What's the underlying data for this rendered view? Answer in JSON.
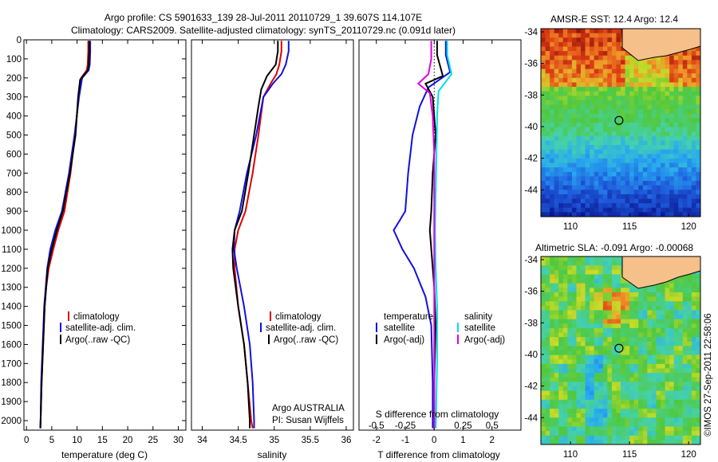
{
  "title": {
    "line1": "Argo profile: CS 5901633_139 28-Jul-2011 20110729_1 39.607S 114.107E",
    "line2": "Climatology: CARS2009. Satellite-adjusted climatology: synTS_20110729.nc (0.091d later)"
  },
  "colors": {
    "climatology": "#e00000",
    "satellite": "#1010e0",
    "argo": "#000000",
    "sal_satellite": "#00e0e0",
    "sal_argo": "#e000e0",
    "land": "#f5c08a"
  },
  "chart_data": [
    {
      "type": "line",
      "xlabel": "temperature (deg C)",
      "ylabel": "",
      "xlim": [
        -0.5,
        31.5
      ],
      "ylim": [
        2050,
        0
      ],
      "xticks": [
        0,
        5,
        10,
        15,
        20,
        25,
        30
      ],
      "yticks": [
        0,
        100,
        200,
        300,
        400,
        500,
        600,
        700,
        800,
        900,
        1000,
        1100,
        1200,
        1300,
        1400,
        1500,
        1600,
        1700,
        1800,
        1900,
        2000
      ],
      "legend": {
        "placement": "lower-center",
        "entries": [
          "climatology",
          "satellite-adj. clim.",
          "Argo(..raw -QC)"
        ]
      },
      "series": [
        {
          "name": "climatology",
          "color": "#e00000",
          "points": [
            [
              12.2,
              5
            ],
            [
              12.2,
              60
            ],
            [
              12.1,
              130
            ],
            [
              11.9,
              160
            ],
            [
              10.8,
              200
            ],
            [
              10.3,
              300
            ],
            [
              9.6,
              500
            ],
            [
              8.7,
              700
            ],
            [
              7.5,
              900
            ],
            [
              6.3,
              1000
            ],
            [
              5.3,
              1100
            ],
            [
              4.4,
              1200
            ],
            [
              3.9,
              1300
            ],
            [
              3.6,
              1400
            ],
            [
              3.3,
              1600
            ],
            [
              3.0,
              1800
            ],
            [
              2.8,
              2000
            ],
            [
              2.75,
              2040
            ]
          ]
        },
        {
          "name": "satellite-adj. clim.",
          "color": "#1010e0",
          "points": [
            [
              12.6,
              5
            ],
            [
              12.6,
              60
            ],
            [
              12.5,
              130
            ],
            [
              12.3,
              160
            ],
            [
              11.0,
              200
            ],
            [
              10.4,
              300
            ],
            [
              9.5,
              500
            ],
            [
              8.4,
              700
            ],
            [
              7.0,
              900
            ],
            [
              5.7,
              1000
            ],
            [
              4.7,
              1100
            ],
            [
              4.1,
              1200
            ],
            [
              3.8,
              1300
            ],
            [
              3.5,
              1400
            ],
            [
              3.2,
              1600
            ],
            [
              2.9,
              1800
            ],
            [
              2.8,
              2000
            ],
            [
              2.75,
              2040
            ]
          ]
        },
        {
          "name": "Argo(..raw -QC)",
          "color": "#000000",
          "points": [
            [
              12.4,
              5
            ],
            [
              12.4,
              60
            ],
            [
              12.3,
              130
            ],
            [
              12.1,
              160
            ],
            [
              10.6,
              210
            ],
            [
              10.2,
              300
            ],
            [
              9.7,
              500
            ],
            [
              8.6,
              700
            ],
            [
              7.2,
              900
            ],
            [
              6.0,
              1000
            ],
            [
              5.0,
              1100
            ],
            [
              4.2,
              1200
            ],
            [
              3.9,
              1300
            ],
            [
              3.6,
              1400
            ],
            [
              3.3,
              1600
            ],
            [
              3.0,
              1800
            ],
            [
              2.8,
              2000
            ],
            [
              2.75,
              2040
            ]
          ]
        }
      ]
    },
    {
      "type": "line",
      "xlabel": "salinity",
      "xlim": [
        33.85,
        36.1
      ],
      "ylim": [
        2050,
        0
      ],
      "xticks": [
        34,
        34.5,
        35,
        35.5,
        36
      ],
      "legend": {
        "placement": "lower-center",
        "entries": [
          "climatology",
          "satellite-adj. clim.",
          "Argo(..raw -QC)"
        ]
      },
      "annotation": [
        "Argo AUSTRALIA",
        "PI: Susan Wijffels"
      ],
      "series": [
        {
          "name": "climatology",
          "color": "#e00000",
          "points": [
            [
              35.1,
              5
            ],
            [
              35.1,
              60
            ],
            [
              35.07,
              130
            ],
            [
              35.03,
              180
            ],
            [
              34.95,
              230
            ],
            [
              34.85,
              300
            ],
            [
              34.78,
              500
            ],
            [
              34.7,
              700
            ],
            [
              34.6,
              900
            ],
            [
              34.5,
              1000
            ],
            [
              34.45,
              1100
            ],
            [
              34.45,
              1200
            ],
            [
              34.5,
              1400
            ],
            [
              34.58,
              1600
            ],
            [
              34.63,
              1800
            ],
            [
              34.68,
              2000
            ],
            [
              34.7,
              2040
            ]
          ]
        },
        {
          "name": "satellite-adj. clim.",
          "color": "#1010e0",
          "points": [
            [
              35.2,
              5
            ],
            [
              35.2,
              60
            ],
            [
              35.16,
              130
            ],
            [
              35.1,
              180
            ],
            [
              34.98,
              230
            ],
            [
              34.85,
              300
            ],
            [
              34.75,
              500
            ],
            [
              34.62,
              700
            ],
            [
              34.52,
              900
            ],
            [
              34.45,
              1000
            ],
            [
              34.44,
              1100
            ],
            [
              34.48,
              1200
            ],
            [
              34.58,
              1400
            ],
            [
              34.66,
              1600
            ],
            [
              34.7,
              1800
            ],
            [
              34.72,
              2000
            ],
            [
              34.72,
              2040
            ]
          ]
        },
        {
          "name": "Argo(..raw -QC)",
          "color": "#000000",
          "points": [
            [
              35.05,
              5
            ],
            [
              35.05,
              60
            ],
            [
              35.02,
              130
            ],
            [
              34.9,
              190
            ],
            [
              34.82,
              260
            ],
            [
              34.78,
              350
            ],
            [
              34.72,
              500
            ],
            [
              34.64,
              700
            ],
            [
              34.55,
              900
            ],
            [
              34.45,
              1000
            ],
            [
              34.42,
              1100
            ],
            [
              34.43,
              1200
            ],
            [
              34.5,
              1400
            ],
            [
              34.58,
              1600
            ],
            [
              34.63,
              1800
            ],
            [
              34.66,
              2000
            ],
            [
              34.66,
              2040
            ]
          ]
        }
      ]
    },
    {
      "type": "line",
      "xlabel": "T difference from climatology",
      "x2label": "S difference from climatology",
      "xlim": [
        -2.6,
        3.0
      ],
      "x2lim": [
        -0.65,
        0.75
      ],
      "ylim": [
        2050,
        0
      ],
      "xticks": [
        -2,
        -1,
        0,
        1,
        2
      ],
      "x2ticks": [
        -0.5,
        -0.25,
        0,
        0.25,
        0.5
      ],
      "legend": {
        "placement": "lower",
        "groups": [
          {
            "title": "temperature",
            "entries": [
              "satellite",
              "Argo(-adj)"
            ]
          },
          {
            "title": "salinity",
            "entries": [
              "satellite",
              "Argo(-adj)"
            ]
          }
        ]
      },
      "series": [
        {
          "name": "temperature satellite",
          "color": "#1010e0",
          "points": [
            [
              0.4,
              5
            ],
            [
              0.4,
              80
            ],
            [
              0.55,
              170
            ],
            [
              -0.2,
              250
            ],
            [
              -0.5,
              350
            ],
            [
              -0.75,
              500
            ],
            [
              -0.9,
              700
            ],
            [
              -1.0,
              900
            ],
            [
              -1.2,
              950
            ],
            [
              -1.4,
              1000
            ],
            [
              -1.1,
              1100
            ],
            [
              -0.7,
              1200
            ],
            [
              -0.3,
              1350
            ],
            [
              -0.1,
              1500
            ],
            [
              -0.05,
              1800
            ],
            [
              -0.05,
              2040
            ]
          ]
        },
        {
          "name": "temperature Argo(-adj)",
          "color": "#000000",
          "points": [
            [
              0.1,
              5
            ],
            [
              0.1,
              80
            ],
            [
              0.3,
              190
            ],
            [
              -0.3,
              230
            ],
            [
              -0.05,
              300
            ],
            [
              0.05,
              500
            ],
            [
              -0.05,
              700
            ],
            [
              -0.1,
              900
            ],
            [
              -0.15,
              1000
            ],
            [
              -0.1,
              1100
            ],
            [
              0.0,
              1300
            ],
            [
              0.05,
              1500
            ],
            [
              0.0,
              1800
            ],
            [
              0.0,
              2040
            ]
          ]
        },
        {
          "name": "salinity satellite",
          "color": "#00e0e0",
          "points": [
            [
              0.45,
              5
            ],
            [
              0.45,
              80
            ],
            [
              0.6,
              180
            ],
            [
              0.15,
              270
            ],
            [
              0.1,
              400
            ],
            [
              0.08,
              600
            ],
            [
              0.05,
              800
            ],
            [
              0.03,
              1000
            ],
            [
              0.05,
              1200
            ],
            [
              0.1,
              1400
            ],
            [
              0.1,
              1700
            ],
            [
              0.06,
              2000
            ],
            [
              0.05,
              2040
            ]
          ]
        },
        {
          "name": "salinity Argo(-adj)",
          "color": "#e000e0",
          "points": [
            [
              -0.1,
              5
            ],
            [
              -0.1,
              100
            ],
            [
              -0.2,
              180
            ],
            [
              -0.55,
              230
            ],
            [
              -0.15,
              280
            ],
            [
              -0.05,
              400
            ],
            [
              0.0,
              600
            ],
            [
              0.0,
              1000
            ],
            [
              0.0,
              1400
            ],
            [
              0.0,
              2040
            ]
          ]
        }
      ]
    },
    {
      "type": "heatmap",
      "title": "AMSR-E SST: 12.4 Argo: 12.4",
      "xlim": [
        107.5,
        121
      ],
      "ylim": [
        -45.7,
        -33.8
      ],
      "xticks": [
        110,
        115,
        120
      ],
      "yticks": [
        -34,
        -36,
        -38,
        -40,
        -42,
        -44
      ],
      "marker": {
        "lon": 114.107,
        "lat": -39.607
      }
    },
    {
      "type": "heatmap",
      "title": "Altimetric SLA: -0.091  Argo: -0.00068",
      "xlim": [
        107.5,
        121
      ],
      "ylim": [
        -45.7,
        -33.8
      ],
      "xticks": [
        110,
        115,
        120
      ],
      "yticks": [
        -34,
        -36,
        -38,
        -40,
        -42,
        -44
      ],
      "marker": {
        "lon": 114.107,
        "lat": -39.607
      }
    }
  ],
  "legend_labels": {
    "clim": "climatology",
    "sat": "satellite-adj. clim.",
    "argo": "Argo(..raw -QC)",
    "temp_title": "temperature",
    "sal_title": "salinity",
    "satellite": "satellite",
    "argo_adj": "Argo(-adj)"
  },
  "annotation": {
    "line1": "Argo AUSTRALIA",
    "line2": "PI: Susan Wijffels"
  },
  "side_label": "©IMOS 27-Sep-2011 22:58:06"
}
